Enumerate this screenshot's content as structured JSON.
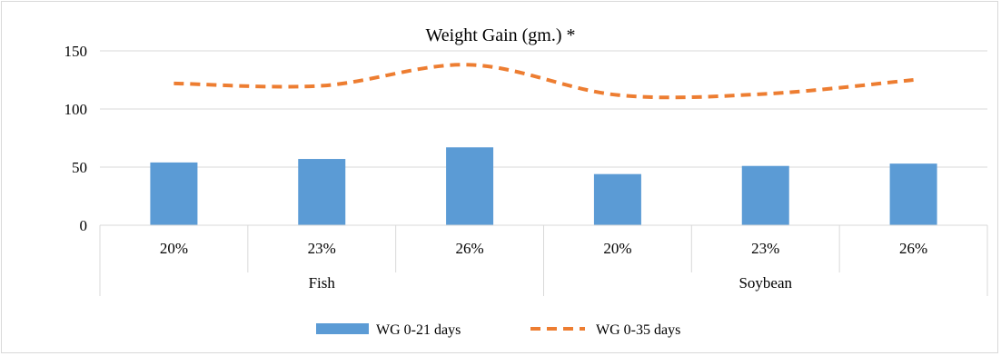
{
  "chart_data": {
    "type": "bar",
    "title": "Weight Gain (gm.) *",
    "xlabel": "",
    "ylabel": "",
    "ylim": [
      0,
      150
    ],
    "yticks": [
      0,
      50,
      100,
      150
    ],
    "groups": [
      {
        "label": "Fish",
        "categories": [
          "20%",
          "23%",
          "26%"
        ]
      },
      {
        "label": "Soybean",
        "categories": [
          "20%",
          "23%",
          "26%"
        ]
      }
    ],
    "categories": [
      "20%",
      "23%",
      "26%",
      "20%",
      "23%",
      "26%"
    ],
    "series": [
      {
        "name": "WG 0-21 days",
        "kind": "bar",
        "color": "#5b9bd5",
        "values": [
          54,
          57,
          67,
          44,
          51,
          53
        ]
      },
      {
        "name": "WG 0-35 days",
        "kind": "line",
        "style": "dashed",
        "color": "#ed7d31",
        "values": [
          122,
          120,
          138,
          112,
          113,
          125
        ]
      }
    ],
    "grid": true,
    "legend_position": "bottom"
  }
}
